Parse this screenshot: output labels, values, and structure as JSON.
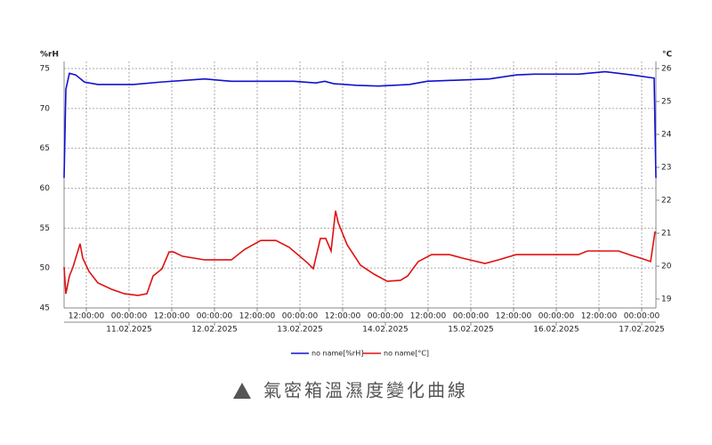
{
  "chart_data": {
    "type": "line",
    "y_label": "%rH",
    "y2_label": "°C",
    "xlim": [
      5.75,
      172
    ],
    "xticks": [
      {
        "value": 12,
        "label": "12:00:00"
      },
      {
        "value": 24,
        "label": "00:00:00"
      },
      {
        "value": 36,
        "label": "12:00:00"
      },
      {
        "value": 48,
        "label": "00:00:00"
      },
      {
        "value": 60,
        "label": "12:00:00"
      },
      {
        "value": 72,
        "label": "00:00:00"
      },
      {
        "value": 84,
        "label": "12:00:00"
      },
      {
        "value": 96,
        "label": "00:00:00"
      },
      {
        "value": 108,
        "label": "12:00:00"
      },
      {
        "value": 120,
        "label": "00:00:00"
      },
      {
        "value": 132,
        "label": "12:00:00"
      },
      {
        "value": 144,
        "label": "00:00:00"
      },
      {
        "value": 156,
        "label": "12:00:00"
      },
      {
        "value": 168,
        "label": "00:00:00"
      }
    ],
    "x_date_labels": [
      {
        "value": 24,
        "label": "11.02.2025"
      },
      {
        "value": 48,
        "label": "12.02.2025"
      },
      {
        "value": 72,
        "label": "13.02.2025"
      },
      {
        "value": 96,
        "label": "14.02.2025"
      },
      {
        "value": 120,
        "label": "15.02.2025"
      },
      {
        "value": 144,
        "label": "16.02.2025"
      },
      {
        "value": 168,
        "label": "17.02.2025"
      }
    ],
    "ylim": [
      45,
      75
    ],
    "yticks": [
      45,
      50,
      55,
      60,
      65,
      70,
      75
    ],
    "y2lim": [
      18.73,
      26
    ],
    "y2ticks": [
      19,
      20,
      21,
      22,
      23,
      24,
      25,
      26
    ],
    "grid": true,
    "series": [
      {
        "name": "no name[%rH]",
        "color": "#1010d0",
        "x": [
          5.75,
          6.25,
          7.25,
          9,
          11.5,
          15.25,
          25.25,
          32.75,
          45.25,
          52.75,
          70.25,
          76.5,
          79,
          81.5,
          87.75,
          94,
          102.75,
          107.75,
          125.25,
          132.75,
          137.75,
          150.25,
          157.75,
          165.25,
          171.5,
          172
        ],
        "values": [
          61.3,
          72.4,
          74.4,
          74.2,
          73.3,
          73,
          73,
          73.3,
          73.7,
          73.4,
          73.4,
          73.2,
          73.4,
          73.1,
          72.9,
          72.8,
          73,
          73.4,
          73.7,
          74.2,
          74.3,
          74.3,
          74.6,
          74.2,
          73.8,
          61.3
        ]
      },
      {
        "name": "no name[°C]",
        "color": "#e01010",
        "axis": "y2",
        "x": [
          5.75,
          6.25,
          7.25,
          8.25,
          10.25,
          11,
          12.75,
          15.25,
          19,
          22.75,
          26.5,
          29,
          30.75,
          33.25,
          35.25,
          36.5,
          39,
          45.25,
          52.75,
          56.5,
          61,
          65.25,
          69,
          74,
          75.75,
          77.75,
          79.25,
          80.75,
          82,
          82.75,
          85.25,
          89,
          92.75,
          96.5,
          100.25,
          102.25,
          105.25,
          109,
          114,
          117.75,
          124,
          127.75,
          132.75,
          142.75,
          150.25,
          152.75,
          161.5,
          165.25,
          167.75,
          170.5,
          171.75
        ],
        "values": [
          19.97,
          19.16,
          19.7,
          19.97,
          20.68,
          20.24,
          19.84,
          19.49,
          19.3,
          19.16,
          19.11,
          19.16,
          19.7,
          19.92,
          20.43,
          20.43,
          20.3,
          20.19,
          20.19,
          20.51,
          20.78,
          20.78,
          20.57,
          20.11,
          19.92,
          20.84,
          20.84,
          20.46,
          21.68,
          21.32,
          20.65,
          20.03,
          19.76,
          19.54,
          19.57,
          19.7,
          20.14,
          20.35,
          20.35,
          20.24,
          20.08,
          20.19,
          20.35,
          20.35,
          20.35,
          20.46,
          20.46,
          20.32,
          20.24,
          20.14,
          21.05
        ]
      }
    ]
  },
  "caption": "氣密箱溫濕度變化曲線"
}
